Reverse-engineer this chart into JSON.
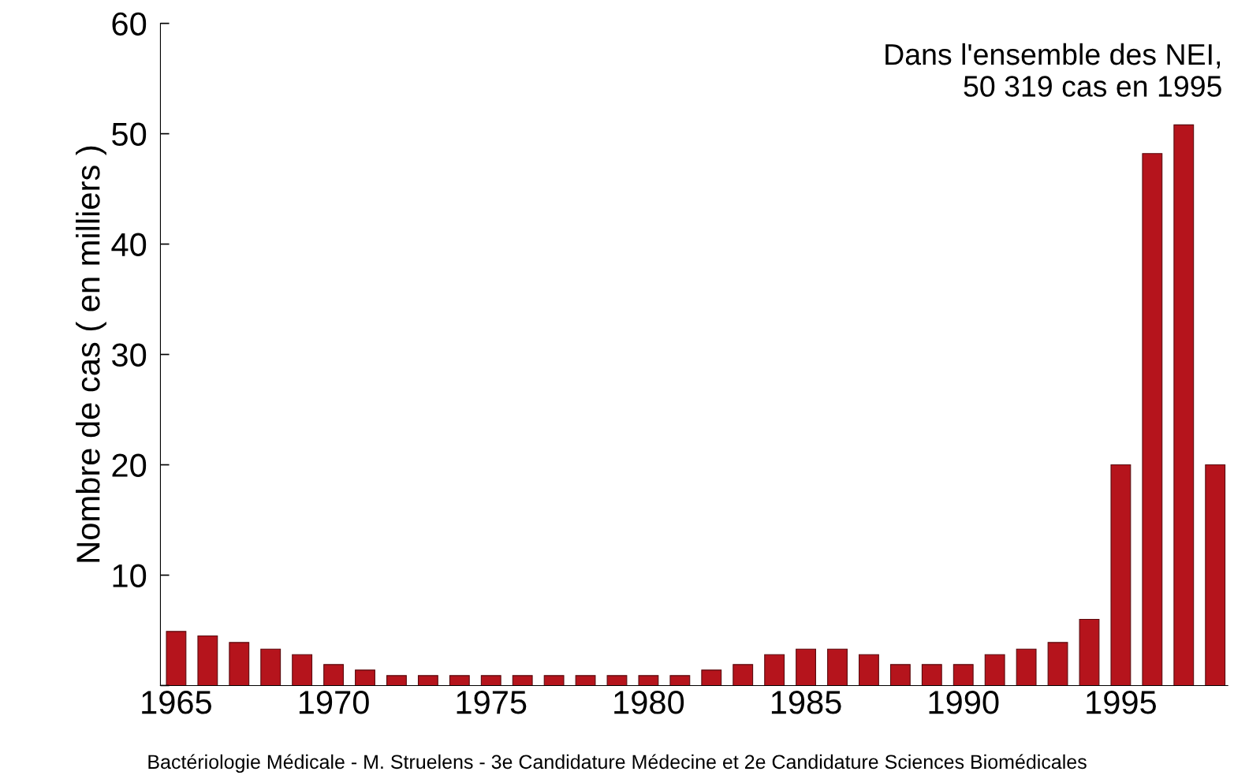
{
  "chart_data": {
    "type": "bar",
    "ylabel": "Nombre de cas ( en milliers )",
    "x": [
      1965,
      1966,
      1967,
      1968,
      1969,
      1970,
      1971,
      1972,
      1973,
      1974,
      1975,
      1976,
      1977,
      1978,
      1979,
      1980,
      1981,
      1982,
      1983,
      1984,
      1985,
      1986,
      1987,
      1988,
      1989,
      1990,
      1991,
      1992,
      1993,
      1994,
      1995,
      1996,
      1997,
      1998
    ],
    "values": [
      4.9,
      4.5,
      3.9,
      3.3,
      2.8,
      1.9,
      1.4,
      0.9,
      0.9,
      0.9,
      0.9,
      0.9,
      0.9,
      0.9,
      0.9,
      0.9,
      0.9,
      1.4,
      1.9,
      2.8,
      3.3,
      3.3,
      2.8,
      1.9,
      1.9,
      1.9,
      2.8,
      3.3,
      3.9,
      6.0,
      20,
      48.2,
      50.8,
      20
    ],
    "color": "#b5141c",
    "xlim": [
      1964.5,
      1998.4
    ],
    "ylim": [
      0,
      60
    ],
    "xticks": [
      1965,
      1970,
      1975,
      1980,
      1985,
      1990,
      1995
    ],
    "yticks": [
      {
        "value": 0,
        "label": null
      },
      10,
      20,
      30,
      40,
      50,
      60
    ],
    "grid": false,
    "legend": false,
    "annotations": [
      "Dans l'ensemble des NEI,\n50 319 cas en 1995",
      "Bactériologie Médicale - M. Struelens - 3e Candidature Médecine et 2e Candidature Sciences Biomédicales"
    ]
  }
}
